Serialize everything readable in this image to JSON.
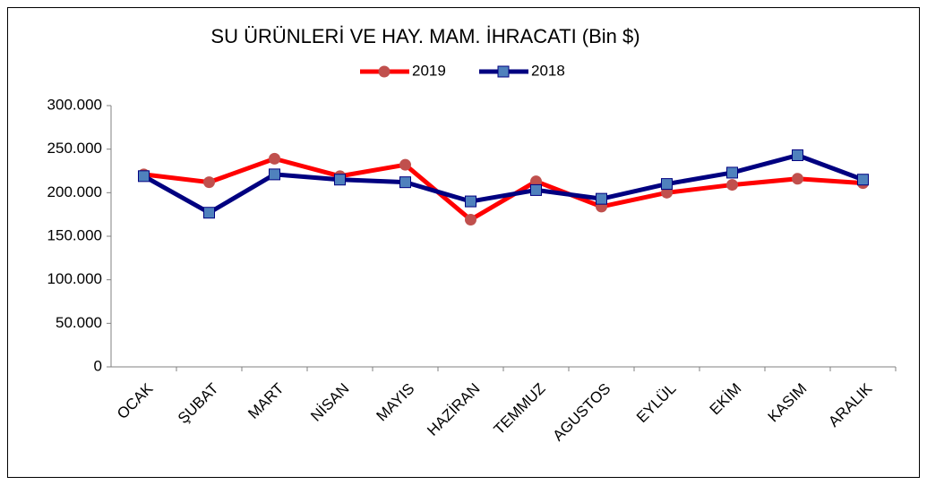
{
  "chart_data": {
    "type": "line",
    "title": "SU ÜRÜNLERİ VE HAY. MAM. İHRACATI (Bin $)",
    "categories": [
      "OCAK",
      "ŞUBAT",
      "MART",
      "NİSAN",
      "MAYIS",
      "HAZİRAN",
      "TEMMUZ",
      "AGUSTOS",
      "EYLÜL",
      "EKİM",
      "KASIM",
      "ARALIK"
    ],
    "series": [
      {
        "name": "2019",
        "color": "#ff0000",
        "marker_color": "#c0504d",
        "marker": "circle",
        "values": [
          221000,
          212000,
          239000,
          219000,
          232000,
          169000,
          213000,
          184000,
          200000,
          209000,
          216000,
          211000
        ]
      },
      {
        "name": "2018",
        "color": "#000080",
        "marker_color": "#4f81bd",
        "marker": "square",
        "values": [
          219000,
          177000,
          221000,
          215000,
          212000,
          190000,
          203000,
          193000,
          210000,
          223000,
          243000,
          215000
        ]
      }
    ],
    "ylim": [
      0,
      300000
    ],
    "yticks": [
      0,
      {
        "value": 50000,
        "label": "50.000"
      },
      {
        "value": 100000,
        "label": "100.000"
      },
      {
        "value": 150000,
        "label": "150.000"
      },
      {
        "value": 200000,
        "label": "200.000"
      },
      {
        "value": 250000,
        "label": "250.000"
      },
      {
        "value": 300000,
        "label": "300.000"
      }
    ],
    "grid": false,
    "legend": "top"
  }
}
